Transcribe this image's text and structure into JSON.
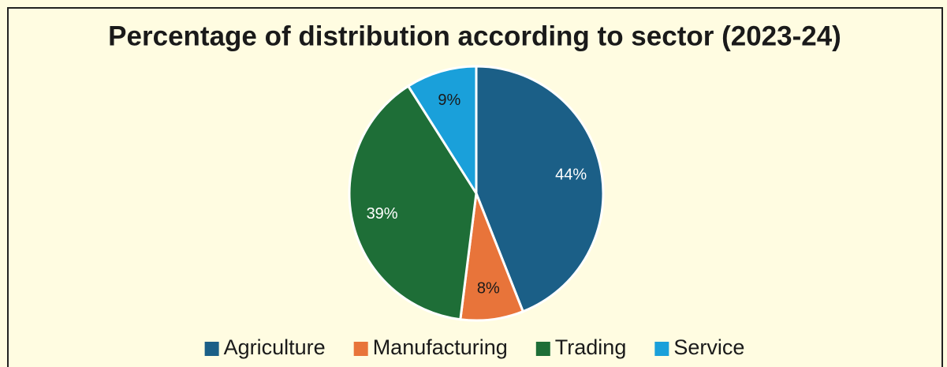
{
  "chart_data": {
    "type": "pie",
    "title": "Percentage of distribution according to sector (2023-24)",
    "categories": [
      "Agriculture",
      "Manufacturing",
      "Trading",
      "Service"
    ],
    "values": [
      44,
      8,
      39,
      9
    ],
    "value_labels": [
      "44%",
      "8%",
      "39%",
      "9%"
    ],
    "colors": [
      "#1b5f87",
      "#e8743a",
      "#1e6e37",
      "#1aa0da"
    ],
    "legend": "bottom"
  }
}
